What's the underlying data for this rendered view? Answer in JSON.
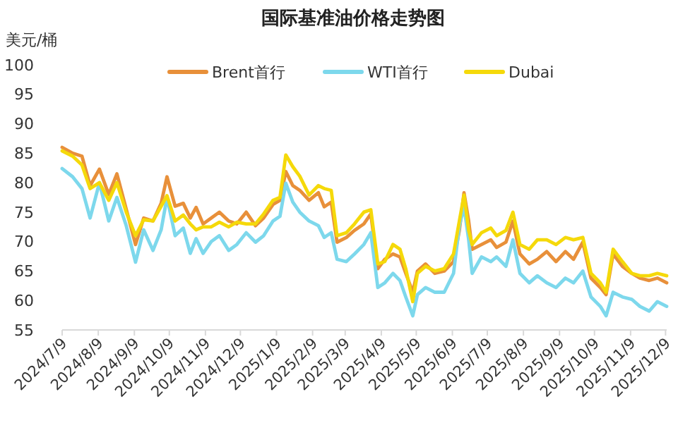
{
  "chart_data": {
    "type": "line",
    "title": "国际基准油价格走势图",
    "ylabel": "美元/桶",
    "x": [
      "2024-07-09",
      "2024-07-18",
      "2024-07-26",
      "2024-08-02",
      "2024-08-10",
      "2024-08-18",
      "2024-08-25",
      "2024-09-02",
      "2024-09-10",
      "2024-09-17",
      "2024-09-25",
      "2024-10-02",
      "2024-10-07",
      "2024-10-14",
      "2024-10-21",
      "2024-10-27",
      "2024-11-01",
      "2024-11-07",
      "2024-11-14",
      "2024-11-21",
      "2024-11-29",
      "2024-12-06",
      "2024-12-14",
      "2024-12-22",
      "2024-12-29",
      "2025-01-06",
      "2025-01-12",
      "2025-01-17",
      "2025-01-23",
      "2025-01-29",
      "2025-02-06",
      "2025-02-14",
      "2025-02-19",
      "2025-02-25",
      "2025-03-02",
      "2025-03-10",
      "2025-03-17",
      "2025-03-25",
      "2025-03-31",
      "2025-04-06",
      "2025-04-12",
      "2025-04-19",
      "2025-04-25",
      "2025-04-30",
      "2025-05-06",
      "2025-05-10",
      "2025-05-17",
      "2025-05-25",
      "2025-06-02",
      "2025-06-10",
      "2025-06-15",
      "2025-06-19",
      "2025-06-23",
      "2025-06-26",
      "2025-07-04",
      "2025-07-12",
      "2025-07-17",
      "2025-07-25",
      "2025-07-31",
      "2025-08-06",
      "2025-08-14",
      "2025-08-21",
      "2025-08-29",
      "2025-09-06",
      "2025-09-14",
      "2025-09-21",
      "2025-09-29",
      "2025-10-06",
      "2025-10-14",
      "2025-10-19",
      "2025-10-25",
      "2025-11-02",
      "2025-11-10",
      "2025-11-17",
      "2025-11-25",
      "2025-12-02",
      "2025-12-10"
    ],
    "series": [
      {
        "name": "Brent首行",
        "color": "#e8903a",
        "values": [
          86,
          85,
          84.5,
          79.5,
          82.3,
          78,
          81.5,
          75.5,
          69.5,
          74,
          73.5,
          76.5,
          81,
          76,
          76.5,
          74,
          75.8,
          73,
          74,
          75,
          73.5,
          73,
          75,
          72.7,
          74,
          76.3,
          77,
          81.9,
          79.5,
          78.7,
          77,
          78.3,
          75.9,
          76.7,
          69.9,
          70.7,
          71.9,
          73,
          74.7,
          65.4,
          67,
          67.9,
          67.4,
          64.6,
          61.4,
          65,
          66.2,
          64.6,
          65,
          66.6,
          71.9,
          78.3,
          73.5,
          68.7,
          69.5,
          70.3,
          69,
          69.9,
          73.5,
          67.9,
          66.2,
          67,
          68.3,
          66.6,
          68.3,
          67,
          69.9,
          63.8,
          62.2,
          61,
          67.9,
          65.8,
          64.6,
          63.8,
          63.4,
          63.8,
          63
        ]
      },
      {
        "name": "WTI首行",
        "color": "#7dd8ec",
        "values": [
          82.4,
          81,
          79,
          74,
          80,
          73.5,
          77.5,
          72.7,
          66.5,
          72,
          68.5,
          72,
          77.5,
          71,
          72.3,
          68,
          70.5,
          68,
          70,
          71,
          68.5,
          69.5,
          71.5,
          69.9,
          71,
          73.5,
          74.3,
          79.9,
          76.7,
          75,
          73.5,
          72.7,
          70.7,
          71.5,
          67,
          66.6,
          67.9,
          69.5,
          71.5,
          62.2,
          63,
          64.6,
          63.4,
          60.6,
          57.4,
          61,
          62.2,
          61.4,
          61.4,
          64.6,
          72.7,
          75.9,
          70.3,
          64.6,
          67.4,
          66.6,
          67.4,
          65.8,
          70.3,
          64.6,
          63,
          64.2,
          63,
          62.2,
          63.8,
          63,
          65,
          60.6,
          59,
          57.4,
          61.4,
          60.6,
          60.2,
          59,
          58.2,
          59.8,
          59
        ]
      },
      {
        "name": "Dubai",
        "color": "#f5d90a",
        "values": [
          85.4,
          84.5,
          83,
          79,
          80,
          77,
          80,
          75,
          71,
          73.7,
          73.5,
          76,
          77.8,
          73.5,
          74.5,
          73,
          72,
          72.5,
          72.5,
          73.3,
          72.5,
          73.3,
          73,
          73,
          74.7,
          77,
          77.5,
          84.7,
          82.7,
          81.1,
          77.9,
          79.5,
          79,
          78.7,
          71,
          71.5,
          73,
          75,
          75.4,
          66.2,
          66.6,
          69.5,
          68.7,
          65.4,
          59.8,
          64.6,
          65.8,
          65,
          65.4,
          67.9,
          73.5,
          77.9,
          71.9,
          69.5,
          71.5,
          72.3,
          71,
          71.9,
          75,
          69.5,
          68.7,
          70.3,
          70.3,
          69.5,
          70.7,
          70.3,
          70.7,
          64.6,
          63,
          61.4,
          68.7,
          66.6,
          64.6,
          64.2,
          64.2,
          64.6,
          64.2
        ]
      }
    ],
    "xlim": [
      "2024-07-09",
      "2025-12-10"
    ],
    "xticks": [
      {
        "value": "2024-07-09",
        "label": "2024/7/9"
      },
      {
        "value": "2024-08-09",
        "label": "2024/8/9"
      },
      {
        "value": "2024-09-09",
        "label": "2024/9/9"
      },
      {
        "value": "2024-10-09",
        "label": "2024/10/9"
      },
      {
        "value": "2024-11-09",
        "label": "2024/11/9"
      },
      {
        "value": "2024-12-09",
        "label": "2024/12/9"
      },
      {
        "value": "2025-01-09",
        "label": "2025/1/9"
      },
      {
        "value": "2025-02-09",
        "label": "2025/2/9"
      },
      {
        "value": "2025-03-09",
        "label": "2025/3/9"
      },
      {
        "value": "2025-04-09",
        "label": "2025/4/9"
      },
      {
        "value": "2025-05-09",
        "label": "2025/5/9"
      },
      {
        "value": "2025-06-09",
        "label": "2025/6/9"
      },
      {
        "value": "2025-07-09",
        "label": "2025/7/9"
      },
      {
        "value": "2025-08-09",
        "label": "2025/8/9"
      },
      {
        "value": "2025-09-09",
        "label": "2025/9/9"
      },
      {
        "value": "2025-10-09",
        "label": "2025/10/9"
      },
      {
        "value": "2025-11-09",
        "label": "2025/11/9"
      },
      {
        "value": "2025-12-09",
        "label": "2025/12/9"
      }
    ],
    "ylim": [
      55,
      100
    ],
    "yticks": [
      55,
      60,
      65,
      70,
      75,
      80,
      85,
      90,
      95,
      100
    ],
    "legend": "top",
    "grid": false,
    "marker": "none",
    "line_style": "solid"
  }
}
